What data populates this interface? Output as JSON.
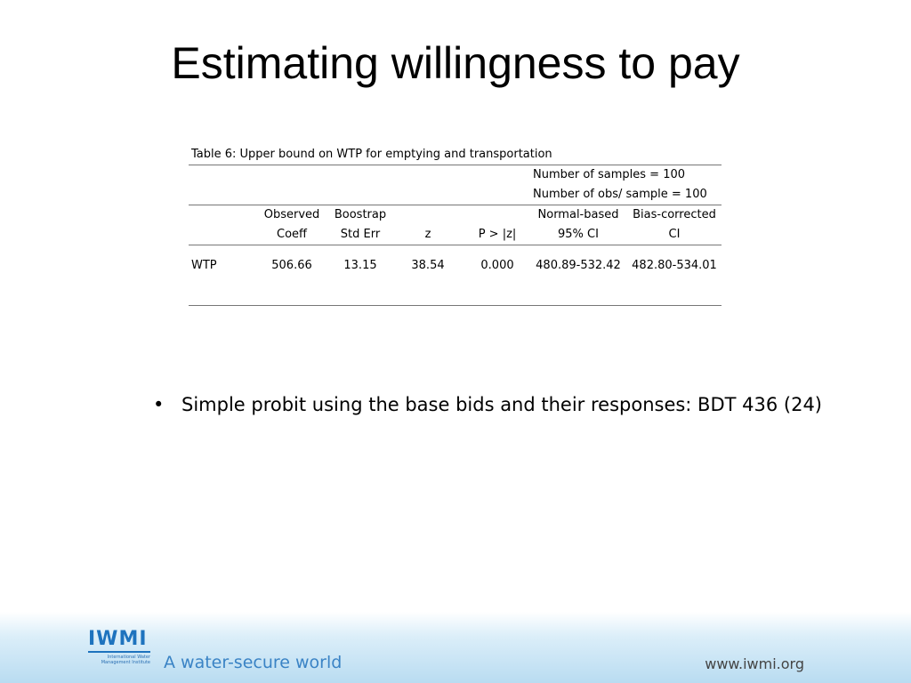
{
  "slide": {
    "title": "Estimating willingness to pay"
  },
  "table": {
    "caption": "Table 6: Upper bound on WTP for emptying and transportation",
    "meta": [
      "Number of samples = 100",
      "Number of obs/ sample = 100"
    ],
    "header_row1": [
      "",
      "Observed",
      "Boostrap",
      "",
      "",
      "Normal-based",
      "Bias-corrected"
    ],
    "header_row2": [
      "",
      "Coeff",
      "Std Err",
      "z",
      "P > |z|",
      "95% CI",
      "CI"
    ],
    "rows": [
      [
        "WTP",
        "506.66",
        "13.15",
        "38.54",
        "0.000",
        "480.89-532.42",
        "482.80-534.01"
      ]
    ]
  },
  "bullets": [
    "Simple probit using the base bids and their responses: BDT 436 (24)"
  ],
  "footer": {
    "logo_text": "IWMI",
    "logo_subtext": "International Water Management Institute",
    "tagline": "A water-secure world",
    "website": "www.iwmi.org"
  },
  "colors": {
    "brand_blue": "#1e73be",
    "footer_gradient_end": "#b9dcf1"
  }
}
